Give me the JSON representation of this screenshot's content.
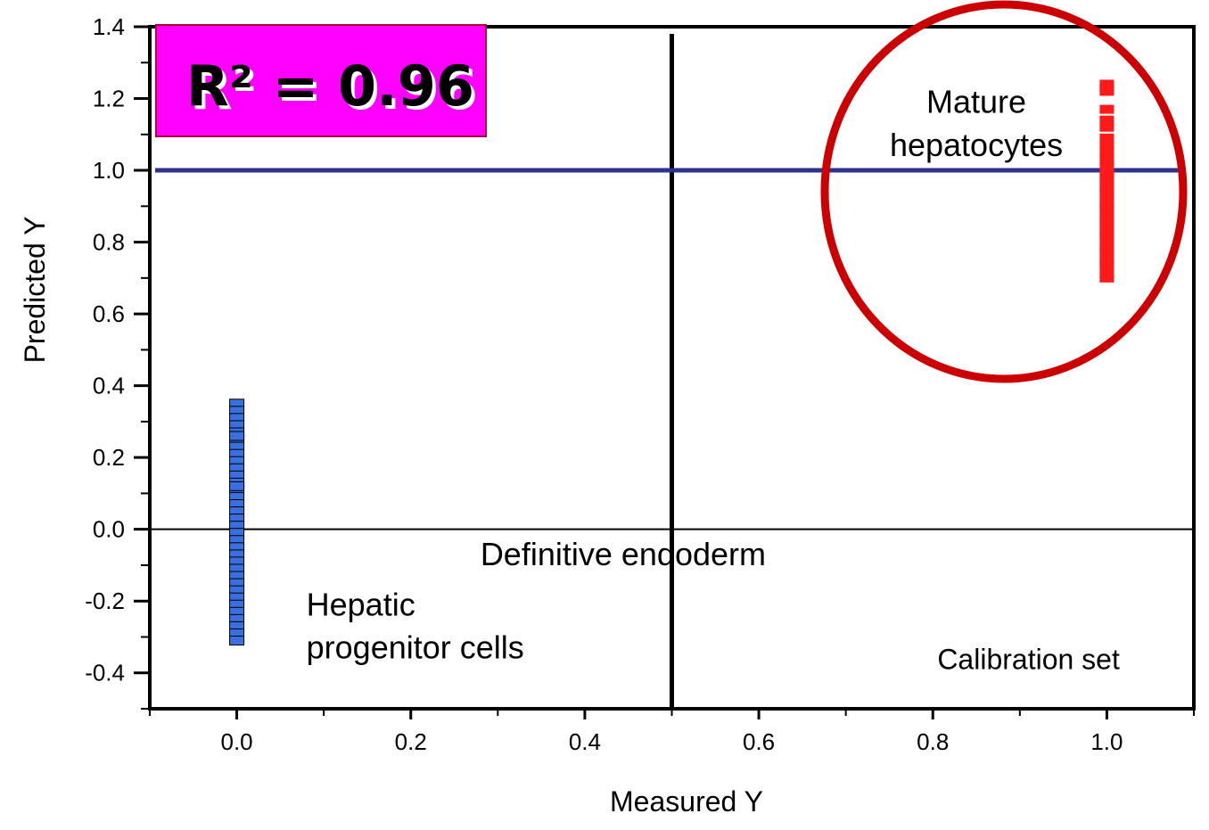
{
  "chart_data": {
    "type": "scatter",
    "xlabel": "Measured Y",
    "ylabel": "Predicted Y",
    "xlim": [
      -0.1,
      1.1
    ],
    "ylim": [
      -0.5,
      1.4
    ],
    "x_ticks": [
      0.0,
      0.2,
      0.4,
      0.6,
      0.8,
      1.0
    ],
    "x_tick_labels": [
      "0.0",
      "0.2",
      "0.4",
      "0.6",
      "0.8",
      "1.0"
    ],
    "y_ticks": [
      -0.4,
      -0.2,
      0.0,
      0.2,
      0.4,
      0.6,
      0.8,
      1.0,
      1.2,
      1.4
    ],
    "y_tick_labels": [
      "-0.4",
      "-0.2",
      "0.0",
      "0.2",
      "0.4",
      "0.6",
      "0.8",
      "1.0",
      "1.2",
      "1.4"
    ],
    "grid": false,
    "r2_label": "R² = 0.96",
    "reference_lines": {
      "horizontal_at_y": 1.0,
      "zero_line_at_y": 0.0,
      "vertical_at_x": 0.5
    },
    "colors": {
      "group_0": "#3a6fe0",
      "group_1": "#ff1a1a",
      "reference_line": "#2e3192",
      "circle": "#cc0000",
      "r2_box": "#ff00ff"
    },
    "series": [
      {
        "x": [
          0,
          0,
          0,
          0,
          0,
          0,
          0,
          0,
          0,
          0,
          0,
          0,
          0,
          0,
          0,
          0,
          0,
          0,
          0,
          0,
          0,
          0,
          0,
          0,
          0,
          0,
          0,
          0,
          0,
          0,
          0,
          0,
          0,
          0,
          0,
          0
        ],
        "y": [
          0.35,
          0.33,
          0.31,
          0.29,
          0.27,
          0.25,
          0.23,
          0.21,
          0.19,
          0.17,
          0.15,
          0.13,
          0.11,
          0.09,
          0.07,
          0.05,
          0.03,
          0.01,
          -0.01,
          -0.03,
          -0.05,
          -0.07,
          -0.09,
          -0.11,
          -0.13,
          -0.15,
          -0.17,
          -0.19,
          -0.21,
          -0.23,
          -0.25,
          -0.27,
          -0.29,
          -0.31,
          0.26,
          0.12
        ]
      },
      {
        "x": [
          1,
          1,
          1,
          1,
          1,
          1,
          1,
          1,
          1,
          1,
          1,
          1,
          1,
          1,
          1,
          1,
          1,
          1,
          1,
          1,
          1,
          1,
          1,
          1,
          1,
          1,
          1,
          1,
          1,
          1,
          1,
          1,
          1,
          1
        ],
        "y": [
          1.24,
          1.23,
          1.22,
          1.17,
          1.14,
          1.12,
          1.09,
          1.07,
          1.05,
          1.03,
          1.01,
          0.99,
          0.97,
          0.95,
          0.93,
          0.91,
          0.89,
          0.87,
          0.85,
          0.83,
          0.81,
          0.79,
          0.77,
          0.75,
          0.73,
          0.71,
          0.7,
          0.98,
          0.94,
          0.9,
          0.86,
          0.82,
          0.78,
          0.74
        ]
      }
    ],
    "annotations": [
      {
        "text": "Mature",
        "x": 0.85,
        "y": 1.16
      },
      {
        "text": "hepatocytes",
        "x": 0.85,
        "y": 1.04
      },
      {
        "text": "Definitive endoderm",
        "x": 0.28,
        "y": -0.1
      },
      {
        "text": "Hepatic",
        "x": 0.08,
        "y": -0.24
      },
      {
        "text": "progenitor cells",
        "x": 0.08,
        "y": -0.36
      },
      {
        "text": "Calibration set",
        "x": 0.91,
        "y": -0.39
      }
    ]
  }
}
